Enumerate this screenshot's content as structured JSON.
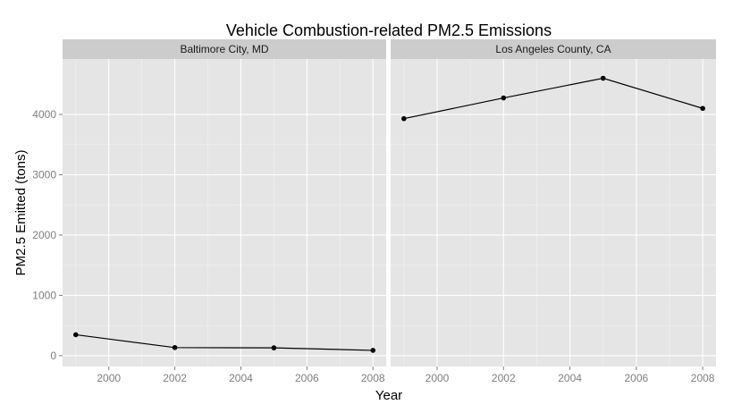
{
  "chart_data": {
    "type": "line",
    "title": "Vehicle Combustion-related PM2.5 Emissions",
    "xlabel": "Year",
    "ylabel": "PM2.5 Emitted (tons)",
    "x_ticks": [
      2000,
      2002,
      2004,
      2006,
      2008
    ],
    "y_ticks": [
      0,
      1000,
      2000,
      3000,
      4000
    ],
    "xlim": [
      1998.6,
      2008.4
    ],
    "ylim": [
      -180,
      4920
    ],
    "grid": true,
    "colors": {
      "line": "#000000",
      "panel": "#e5e5e5",
      "strip": "#cccccc",
      "grid": "#ffffff"
    },
    "panels": [
      {
        "label": "Baltimore City, MD",
        "x": [
          1999,
          2002,
          2005,
          2008
        ],
        "y": [
          347,
          134,
          130,
          88
        ]
      },
      {
        "label": "Los Angeles County, CA",
        "x": [
          1999,
          2002,
          2005,
          2008
        ],
        "y": [
          3931,
          4274,
          4601,
          4101
        ]
      }
    ]
  }
}
